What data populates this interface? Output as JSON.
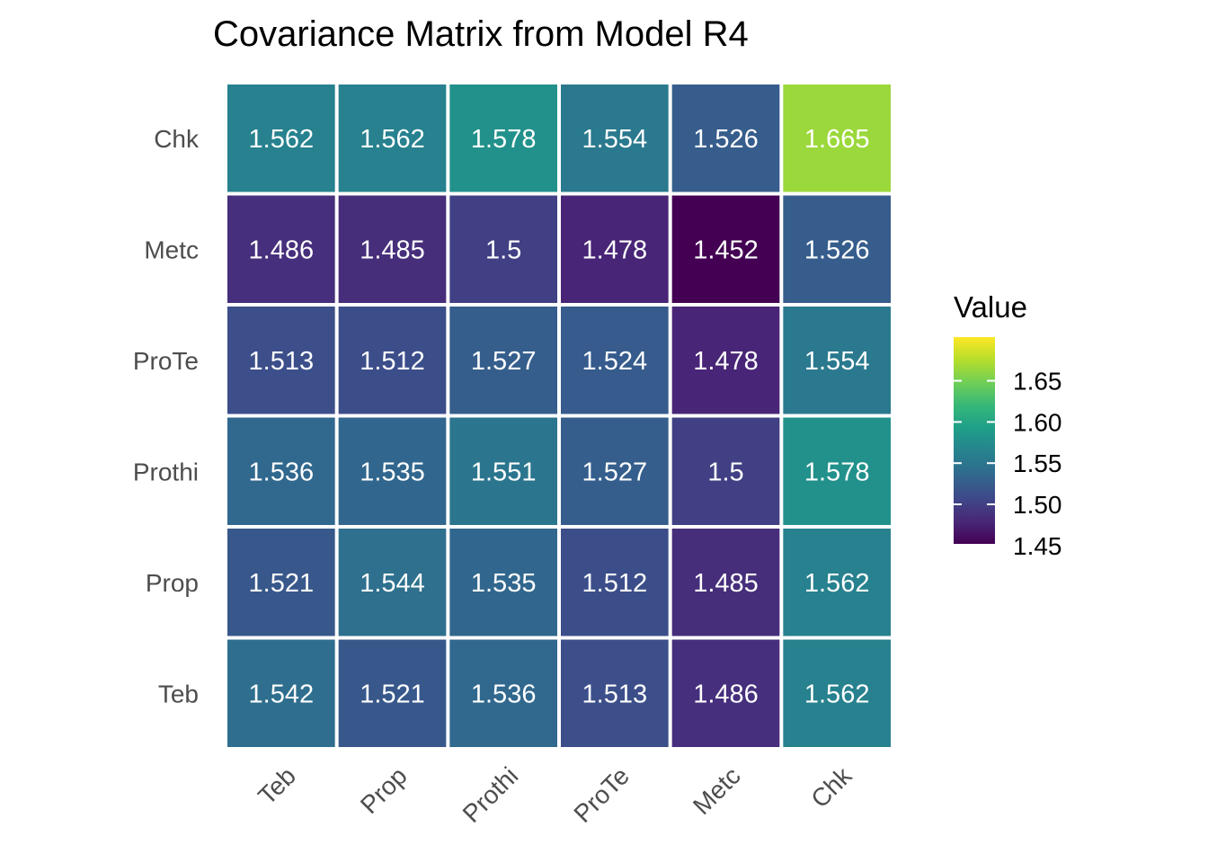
{
  "chart_data": {
    "type": "heatmap",
    "title": "Covariance Matrix from Model R4",
    "x_categories": [
      "Teb",
      "Prop",
      "Prothi",
      "ProTe",
      "Metc",
      "Chk"
    ],
    "y_categories": [
      "Teb",
      "Prop",
      "Prothi",
      "ProTe",
      "Metc",
      "Chk"
    ],
    "values": [
      [
        1.542,
        1.521,
        1.536,
        1.513,
        1.486,
        1.562
      ],
      [
        1.521,
        1.544,
        1.535,
        1.512,
        1.485,
        1.562
      ],
      [
        1.536,
        1.535,
        1.551,
        1.527,
        1.5,
        1.578
      ],
      [
        1.513,
        1.512,
        1.527,
        1.524,
        1.478,
        1.554
      ],
      [
        1.486,
        1.485,
        1.5,
        1.478,
        1.452,
        1.526
      ],
      [
        1.562,
        1.562,
        1.578,
        1.554,
        1.526,
        1.665
      ]
    ],
    "value_labels": [
      [
        "1.542",
        "1.521",
        "1.536",
        "1.513",
        "1.486",
        "1.562"
      ],
      [
        "1.521",
        "1.544",
        "1.535",
        "1.512",
        "1.485",
        "1.562"
      ],
      [
        "1.536",
        "1.535",
        "1.551",
        "1.527",
        "1.5",
        "1.578"
      ],
      [
        "1.513",
        "1.512",
        "1.527",
        "1.524",
        "1.478",
        "1.554"
      ],
      [
        "1.486",
        "1.485",
        "1.5",
        "1.478",
        "1.452",
        "1.526"
      ],
      [
        "1.562",
        "1.562",
        "1.578",
        "1.554",
        "1.526",
        "1.665"
      ]
    ],
    "xlabel": "",
    "ylabel": "",
    "color_scale": {
      "name": "viridis",
      "domain": [
        1.452,
        1.703
      ],
      "stops": [
        "#440154",
        "#482878",
        "#3e4989",
        "#31688e",
        "#26828e",
        "#1f9e89",
        "#35b779",
        "#6ece58",
        "#b5de2b",
        "#fde725"
      ]
    },
    "legend": {
      "title": "Value",
      "ticks": [
        1.45,
        1.5,
        1.55,
        1.6,
        1.65
      ],
      "tick_labels": [
        "1.45",
        "1.50",
        "1.55",
        "1.60",
        "1.65"
      ],
      "placement": "right"
    },
    "grid": false
  }
}
